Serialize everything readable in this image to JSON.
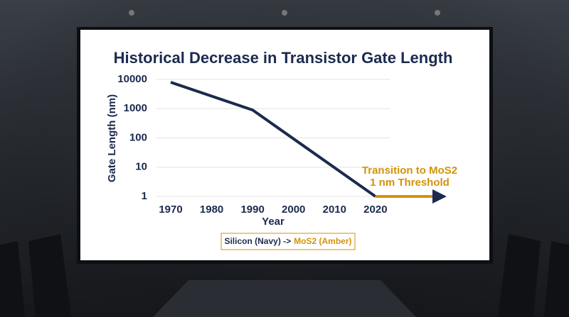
{
  "chart_data": {
    "type": "line",
    "title": "Historical Decrease in Transistor Gate Length",
    "x_label": "Year",
    "y_label": "Gate Length (nm)",
    "yscale": "log",
    "grid": true,
    "xlim": [
      1966,
      2040
    ],
    "ylim": [
      1,
      10000
    ],
    "xticks": [
      1970,
      1980,
      1990,
      2000,
      2010,
      2020
    ],
    "yticks": [
      1,
      10,
      100,
      1000,
      10000
    ],
    "series": [
      {
        "name": "Silicon (Navy) ->",
        "color": "#1b2a4e",
        "x": [
          1970,
          1990,
          2020
        ],
        "values": [
          8000,
          900,
          1
        ]
      },
      {
        "name": "MoS2 (Amber)",
        "color": "#d4920a",
        "x": [
          2020,
          2036
        ],
        "values": [
          1,
          1
        ]
      }
    ],
    "annotations": [
      "Transition to MoS2",
      "1 nm Threshold"
    ]
  }
}
